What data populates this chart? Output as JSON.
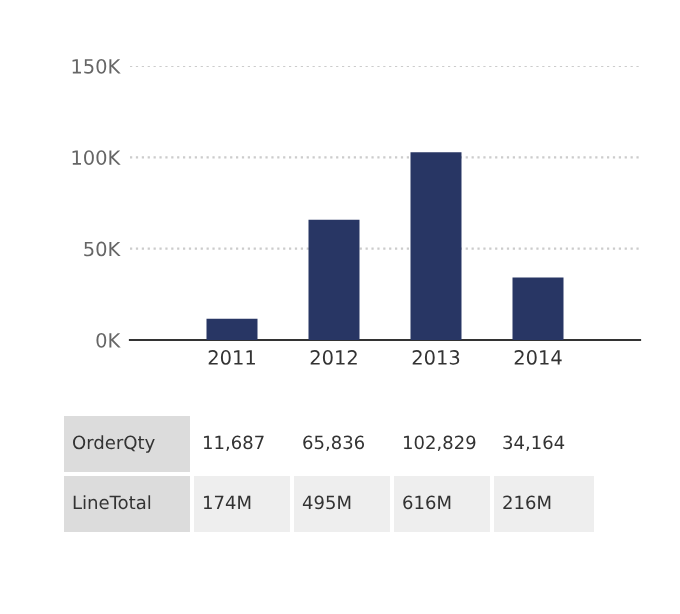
{
  "chart_data": {
    "type": "bar",
    "categories": [
      "2011",
      "2012",
      "2013",
      "2014"
    ],
    "series": [
      {
        "name": "OrderQty",
        "color": "#283664",
        "values": [
          11687,
          65836,
          102829,
          34164
        ],
        "value_labels": [
          "11,687",
          "65,836",
          "102,829",
          "34,164"
        ]
      }
    ],
    "ylim": [
      0,
      150000
    ],
    "yticks": [
      {
        "value": 0,
        "label": "0K"
      },
      {
        "value": 50000,
        "label": "50K"
      },
      {
        "value": 100000,
        "label": "100K"
      },
      {
        "value": 150000,
        "label": "150K"
      }
    ],
    "grid": "y",
    "legend": false,
    "annotations": [
      "LineTotal",
      "174M",
      "495M",
      "616M",
      "216M"
    ]
  }
}
